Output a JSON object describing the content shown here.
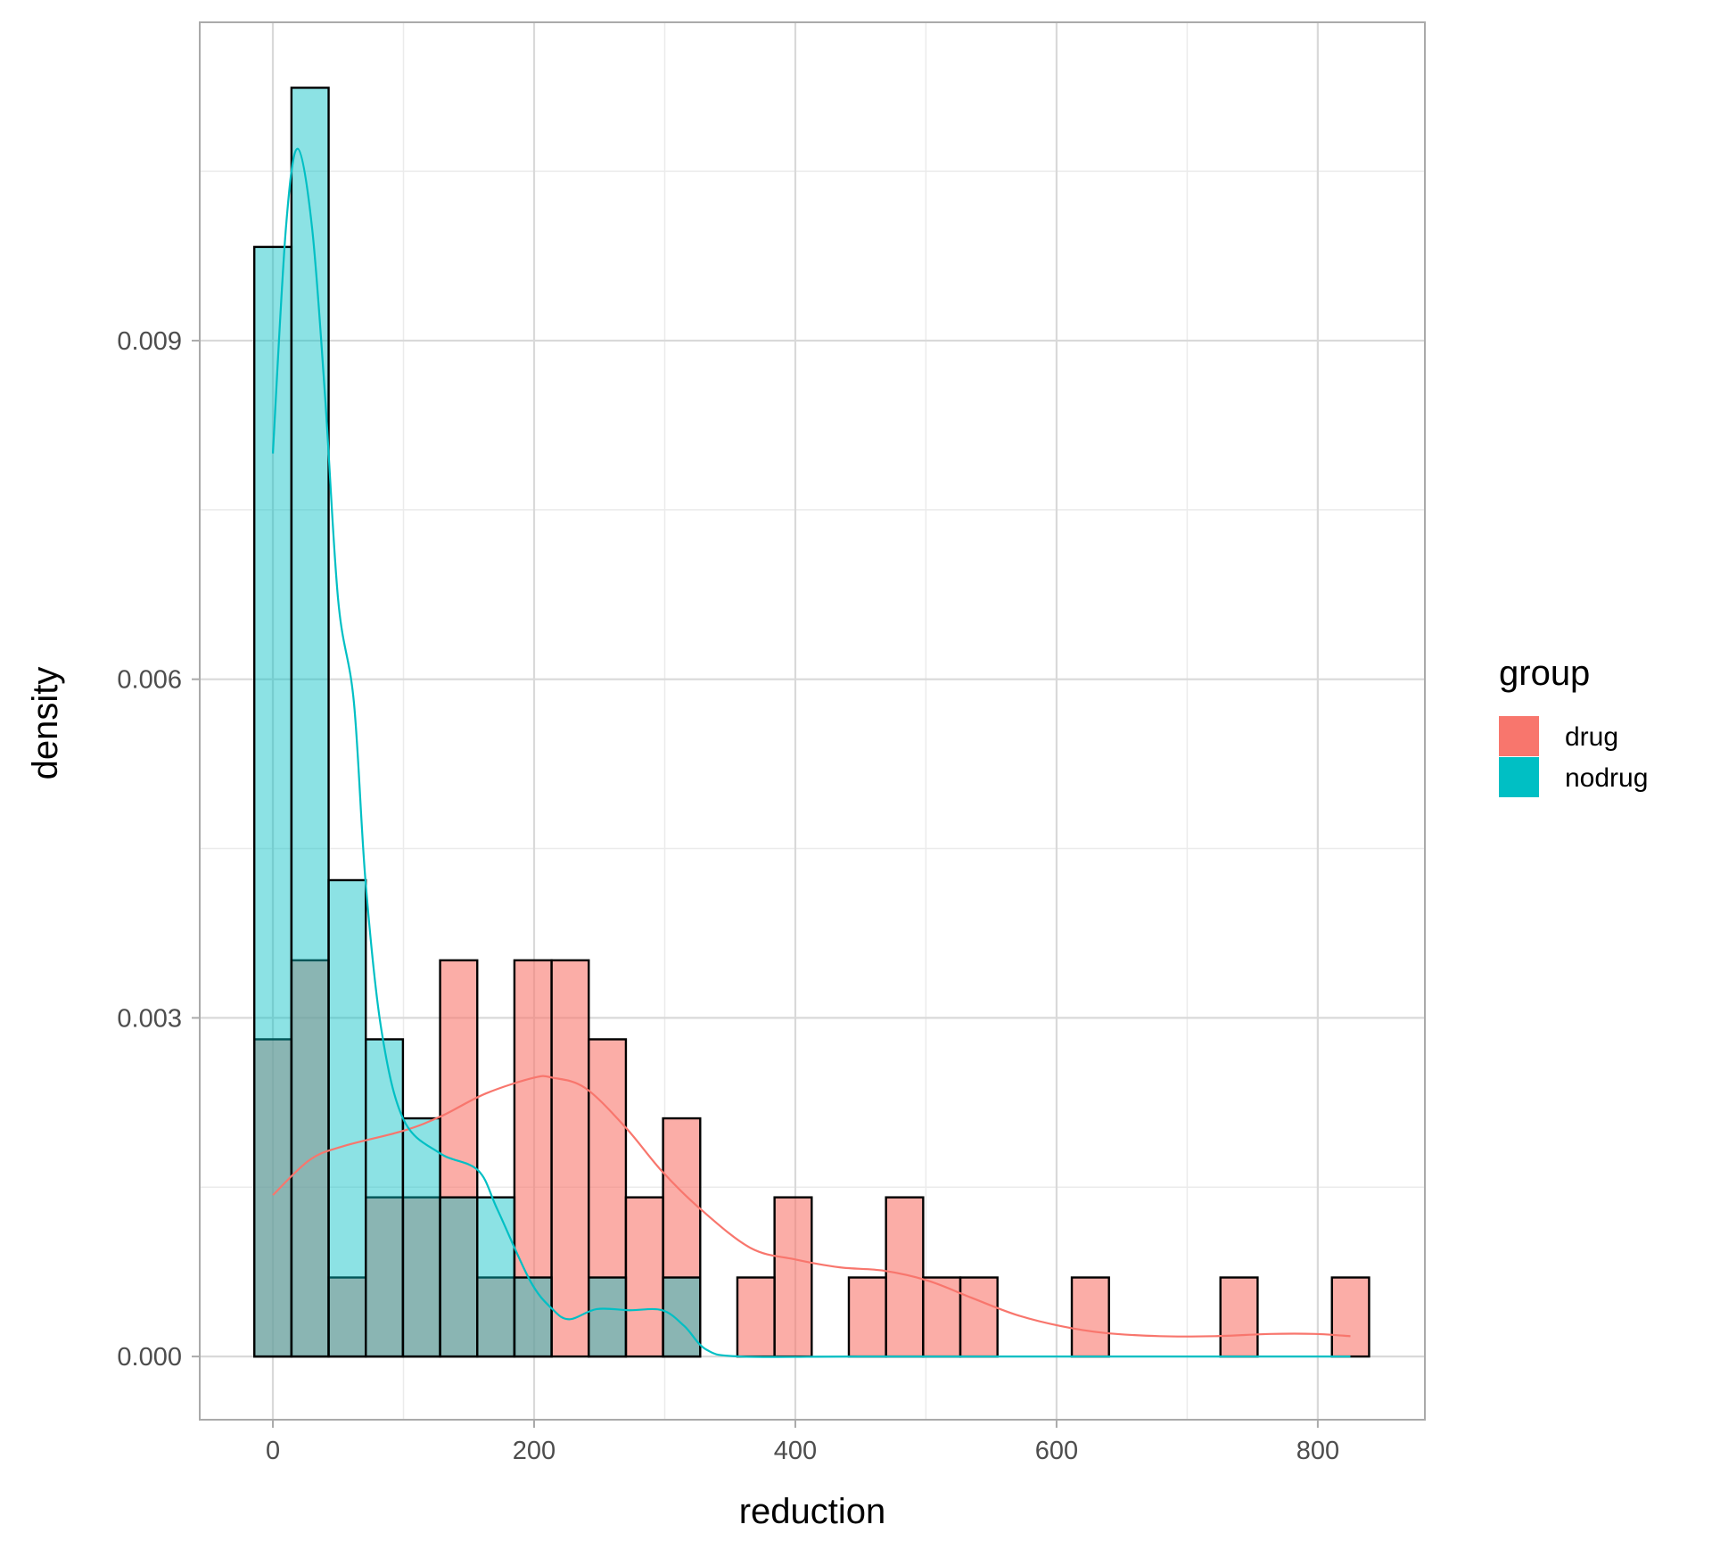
{
  "chart_data": {
    "type": "histogram",
    "xlabel": "reduction",
    "ylabel": "density",
    "xlim": [
      -56,
      882
    ],
    "ylim": [
      -0.00056,
      0.01182
    ],
    "x_ticks": [
      0,
      200,
      400,
      600,
      800
    ],
    "x_tick_labels": [
      "0",
      "200",
      "400",
      "600",
      "800"
    ],
    "y_ticks": [
      0,
      0.003,
      0.006,
      0.009
    ],
    "y_tick_labels": [
      "0.000",
      "0.003",
      "0.006",
      "0.009"
    ],
    "x_minor": [
      100,
      300,
      500,
      700
    ],
    "y_minor": [
      0.0015,
      0.0045,
      0.0075,
      0.0105
    ],
    "grid": true,
    "legend": {
      "title": "group",
      "placement": "right"
    },
    "bin_start": -14.22,
    "bin_width": 28.45,
    "series": [
      {
        "name": "drug",
        "color": "#F8766D",
        "densities": [
          0.00281,
          0.00351,
          0.0007,
          0.00141,
          0.00141,
          0.00351,
          0.0007,
          0.00351,
          0.00351,
          0.00281,
          0.00141,
          0.00211,
          0,
          0.0007,
          0.00141,
          0,
          0.0007,
          0.00141,
          0.0007,
          0.0007,
          0,
          0,
          0.0007,
          0,
          0,
          0,
          0.0007,
          0,
          0,
          0.0007
        ],
        "density_curve": {
          "x": [
            0,
            28,
            53,
            100,
            129,
            163,
            200,
            214,
            239,
            270,
            298,
            328,
            366,
            400,
            434,
            468,
            502,
            535,
            569,
            603,
            636,
            679,
            721,
            764,
            798,
            825
          ],
          "y": [
            0.00143,
            0.00174,
            0.00186,
            0.002,
            0.00213,
            0.00233,
            0.00247,
            0.00247,
            0.00238,
            0.00203,
            0.00164,
            0.0013,
            0.00096,
            0.00086,
            0.00079,
            0.00076,
            0.00067,
            0.00052,
            0.00037,
            0.00027,
            0.00021,
            0.00018,
            0.00018,
            0.0002,
            0.0002,
            0.00018
          ]
        }
      },
      {
        "name": "nodrug",
        "color": "#00BFC4",
        "densities": [
          0.00983,
          0.01124,
          0.00422,
          0.00281,
          0.00211,
          0.00141,
          0.00141,
          0.0007,
          0,
          0.0007,
          0,
          0.0007,
          0,
          0,
          0,
          0,
          0,
          0,
          0,
          0,
          0,
          0,
          0,
          0,
          0,
          0,
          0,
          0,
          0,
          0
        ],
        "density_curve": {
          "x": [
            0,
            10,
            19,
            30,
            40,
            50,
            62,
            71,
            83,
            100,
            128,
            157,
            172,
            197,
            214,
            227,
            248,
            273,
            298,
            315,
            332,
            358,
            450,
            600,
            825
          ],
          "y": [
            0.008,
            0.01,
            0.0107,
            0.01,
            0.0085,
            0.0067,
            0.0058,
            0.0042,
            0.0029,
            0.0021,
            0.0018,
            0.00165,
            0.0013,
            0.00067,
            0.00042,
            0.00033,
            0.00042,
            0.00041,
            0.00041,
            0.00027,
            6e-05,
            0,
            0,
            0,
            0
          ]
        }
      }
    ]
  }
}
